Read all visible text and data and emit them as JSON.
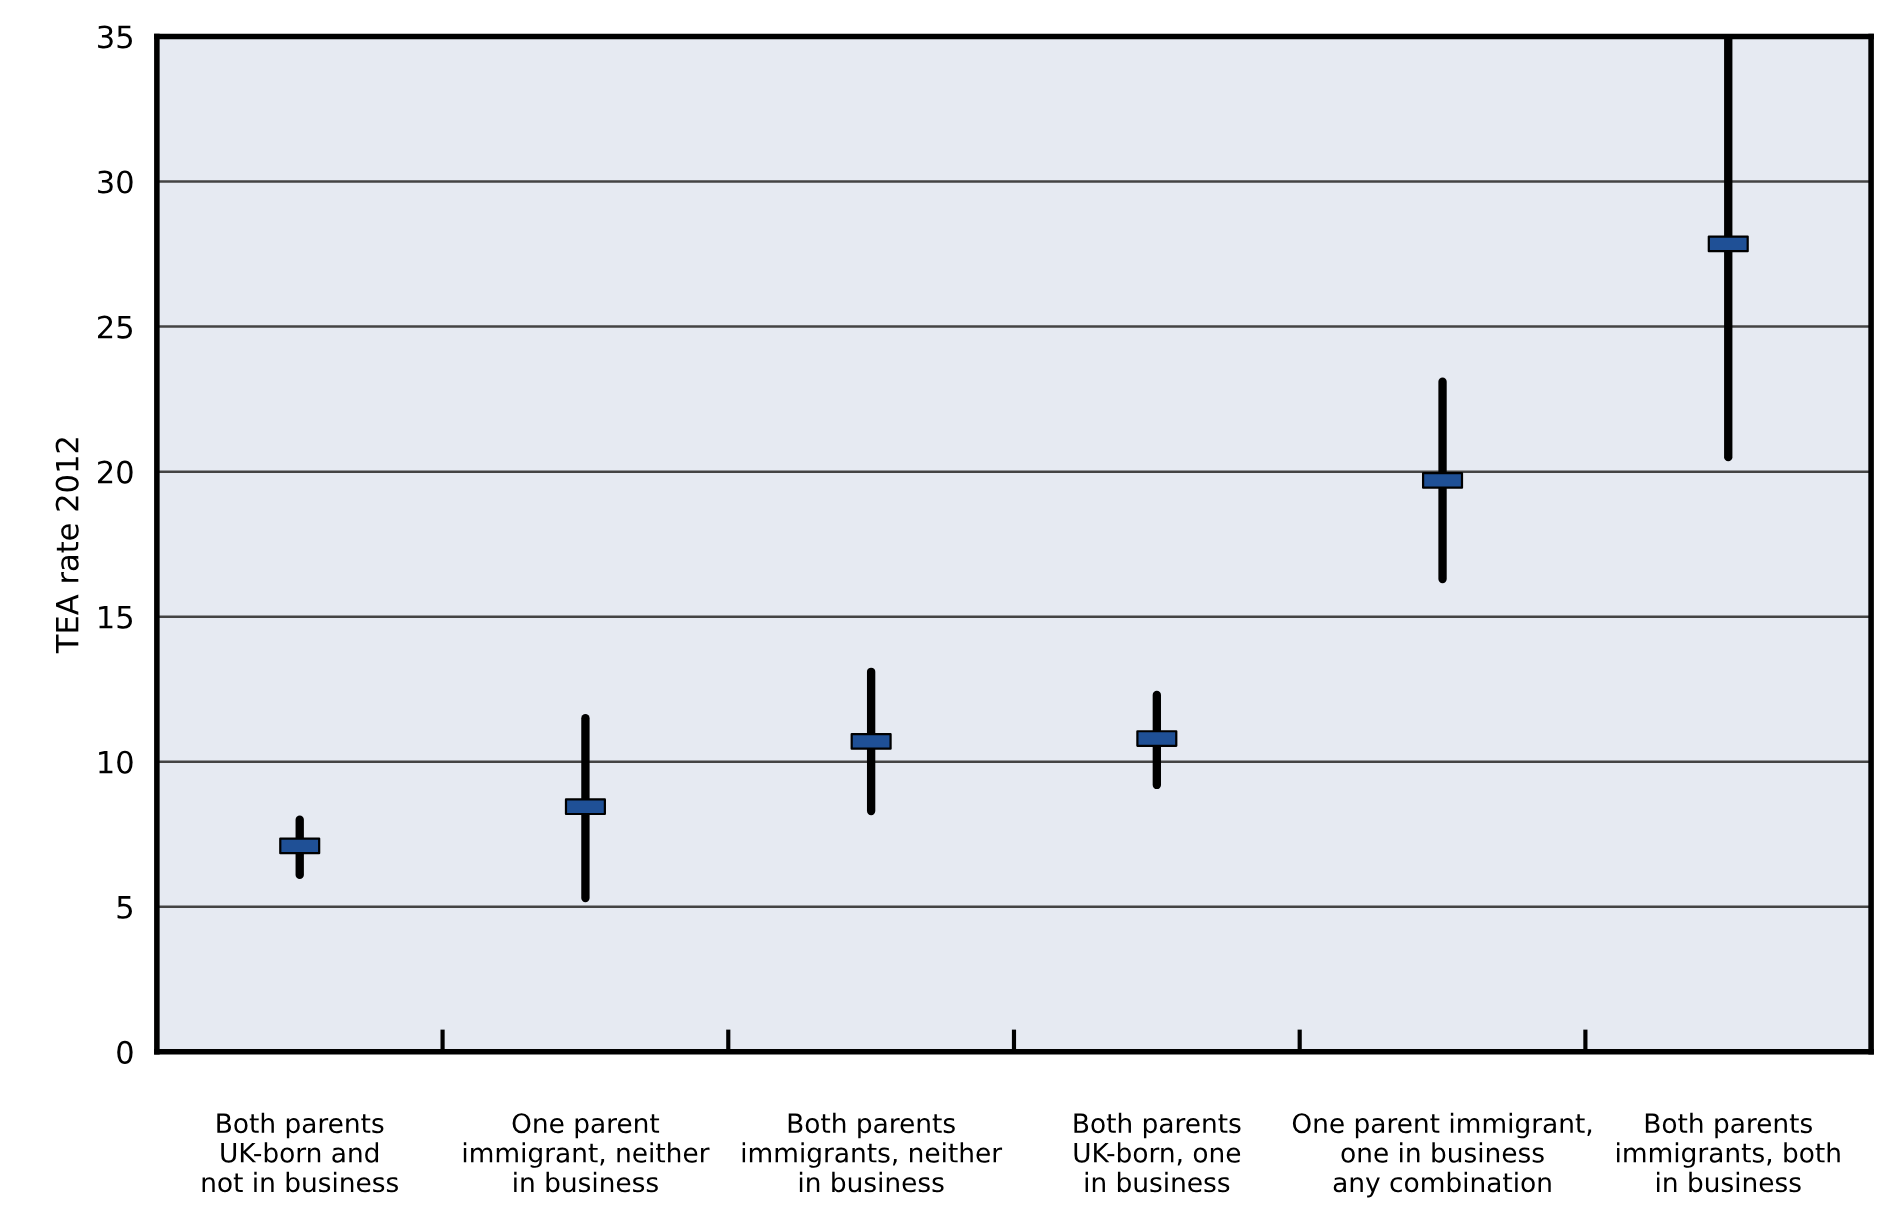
{
  "chart_data": {
    "type": "scatter",
    "ylabel": "TEA rate 2012",
    "categories": [
      "Both parents\nUK-born and\nnot in business",
      "One parent\nimmigrant, neither\nin business",
      "Both parents\nimmigrants, neither\nin business",
      "Both parents\nUK-born, one\nin business",
      "One parent immigrant,\none in business\nany combination",
      "Both parents\nimmigrants, both\nin business"
    ],
    "series": [
      {
        "color": "#1f5096",
        "values": [
          7.1,
          8.45,
          10.7,
          10.8,
          19.7,
          27.85
        ],
        "errors": [
          [
            6.1,
            8.0
          ],
          [
            5.3,
            11.5
          ],
          [
            8.3,
            13.1
          ],
          [
            9.2,
            12.3
          ],
          [
            16.3,
            23.1
          ],
          [
            20.5,
            35
          ]
        ]
      }
    ],
    "ylim": [
      0,
      35
    ],
    "yticks": [
      0,
      5,
      10,
      15,
      20,
      25,
      30,
      35
    ],
    "grid": "y",
    "marker": "square"
  }
}
